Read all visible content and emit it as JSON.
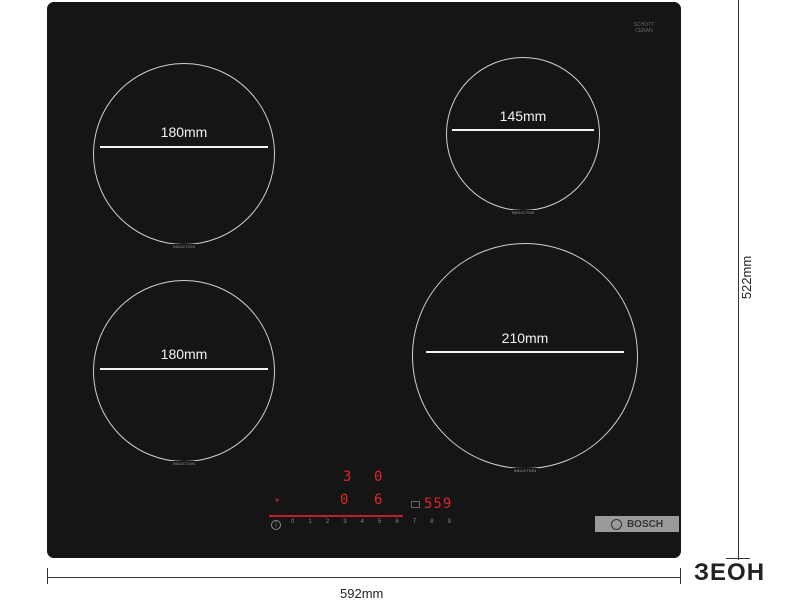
{
  "zones": [
    {
      "label": "180mm",
      "tag": "INDUCTION"
    },
    {
      "label": "145mm",
      "tag": "INDUCTION"
    },
    {
      "label": "180mm",
      "tag": "INDUCTION"
    },
    {
      "label": "210mm",
      "tag": "INDUCTION"
    }
  ],
  "glass_brand": "SCHOTT CERAN",
  "display": {
    "top_left": "3",
    "top_right": "0",
    "mid_left": "0",
    "mid_right": "6",
    "timer": "559"
  },
  "slider": [
    "0",
    "1",
    "2",
    "3",
    "4",
    "5",
    "6",
    "7",
    "8",
    "9"
  ],
  "brand": "BOSCH",
  "dimensions": {
    "height": "522mm",
    "width": "592mm"
  },
  "watermark": "ЗЕОН",
  "colors": {
    "hob": "#151515",
    "display_red": "#e0242a"
  }
}
